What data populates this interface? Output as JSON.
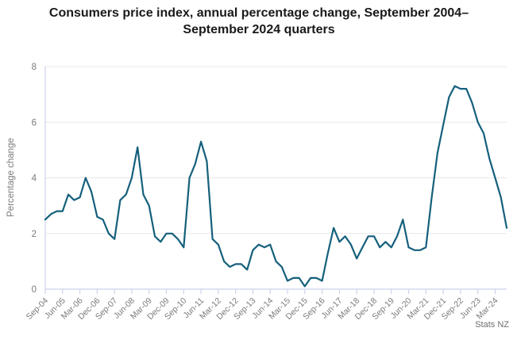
{
  "chart_data": {
    "type": "line",
    "title": "Consumers price index, annual percentage change, September 2004–September 2024 quarters",
    "ylabel": "Percentage change",
    "ylim": [
      0,
      8
    ],
    "yticks": [
      0,
      2,
      4,
      6,
      8
    ],
    "x_tick_labels": [
      "Sep-04",
      "Jun-05",
      "Mar-06",
      "Dec-06",
      "Sep-07",
      "Jun-08",
      "Mar-09",
      "Dec-09",
      "Sep-10",
      "Jun-11",
      "Mar-12",
      "Dec-12",
      "Sep-13",
      "Jun-14",
      "Mar-15",
      "Dec-15",
      "Sep-16",
      "Jun-17",
      "Mar-18",
      "Dec-18",
      "Sep-19",
      "Jun-20",
      "Mar-21",
      "Dec-21",
      "Sep-22",
      "Jun-23",
      "Mar-24"
    ],
    "x_tick_every": 3,
    "grid": "horizontal",
    "legend": "none",
    "attribution": "Stats NZ",
    "series": [
      {
        "name": "CPI annual percentage change",
        "color": "#15607c",
        "values": [
          2.5,
          2.7,
          2.8,
          2.8,
          3.4,
          3.2,
          3.3,
          4.0,
          3.5,
          2.6,
          2.5,
          2.0,
          1.8,
          3.2,
          3.4,
          4.0,
          5.1,
          3.4,
          3.0,
          1.9,
          1.7,
          2.0,
          2.0,
          1.8,
          1.5,
          4.0,
          4.5,
          5.3,
          4.6,
          1.8,
          1.6,
          1.0,
          0.8,
          0.9,
          0.9,
          0.7,
          1.4,
          1.6,
          1.5,
          1.6,
          1.0,
          0.8,
          0.3,
          0.4,
          0.4,
          0.1,
          0.4,
          0.4,
          0.3,
          1.3,
          2.2,
          1.7,
          1.9,
          1.6,
          1.1,
          1.5,
          1.9,
          1.9,
          1.5,
          1.7,
          1.5,
          1.9,
          2.5,
          1.5,
          1.4,
          1.4,
          1.5,
          3.3,
          4.9,
          5.9,
          6.9,
          7.3,
          7.2,
          7.2,
          6.7,
          6.0,
          5.6,
          4.7,
          4.0,
          3.3,
          2.2
        ]
      }
    ],
    "colors": {
      "line": "#15607c",
      "grid": "#e7e7e7",
      "axis": "#ccd2ec",
      "tick_text": "#7a7a7a",
      "title_text": "#1a1a1a",
      "attribution_text": "#6e6e6e"
    }
  }
}
